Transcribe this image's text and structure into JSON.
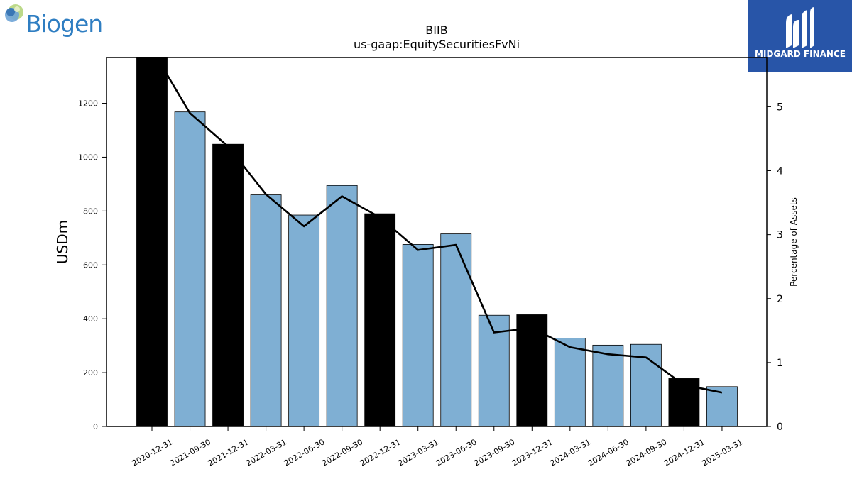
{
  "brand": {
    "company_logo_text": "Biogen",
    "publisher_logo_text": "MIDGARD FINANCE"
  },
  "chart_data": {
    "type": "bar",
    "title": "BIIB",
    "subtitle": "us-gaap:EquitySecuritiesFvNi",
    "ylabel": "USDm",
    "y2label": "Percentage of Assets",
    "ylim": [
      0,
      1370
    ],
    "y2lim": [
      0,
      5.77
    ],
    "yticks": [
      0,
      200,
      400,
      600,
      800,
      1000,
      1200
    ],
    "y2ticks": [
      0,
      1,
      2,
      3,
      4,
      5
    ],
    "grid": false,
    "legend": "none",
    "categories": [
      "2020-12-31",
      "2021-09-30",
      "2021-12-31",
      "2022-03-31",
      "2022-06-30",
      "2022-09-30",
      "2022-12-31",
      "2023-03-31",
      "2023-06-30",
      "2023-09-30",
      "2023-12-31",
      "2024-03-31",
      "2024-06-30",
      "2024-09-30",
      "2024-12-31",
      "2025-03-31"
    ],
    "series": [
      {
        "type": "bar",
        "axis": "left",
        "values": [
          1370,
          1168,
          1048,
          860,
          785,
          895,
          790,
          676,
          715,
          413,
          415,
          328,
          302,
          305,
          178,
          148
        ],
        "colors": [
          "#000000",
          "#7fafd3",
          "#000000",
          "#7fafd3",
          "#7fafd3",
          "#7fafd3",
          "#000000",
          "#7fafd3",
          "#7fafd3",
          "#7fafd3",
          "#000000",
          "#7fafd3",
          "#7fafd3",
          "#7fafd3",
          "#000000",
          "#7fafd3"
        ]
      },
      {
        "type": "line",
        "axis": "right",
        "color": "#000000",
        "values": [
          5.9,
          4.9,
          4.38,
          3.63,
          3.13,
          3.6,
          3.27,
          2.76,
          2.84,
          1.47,
          1.54,
          1.24,
          1.13,
          1.08,
          0.65,
          0.53
        ]
      }
    ]
  }
}
